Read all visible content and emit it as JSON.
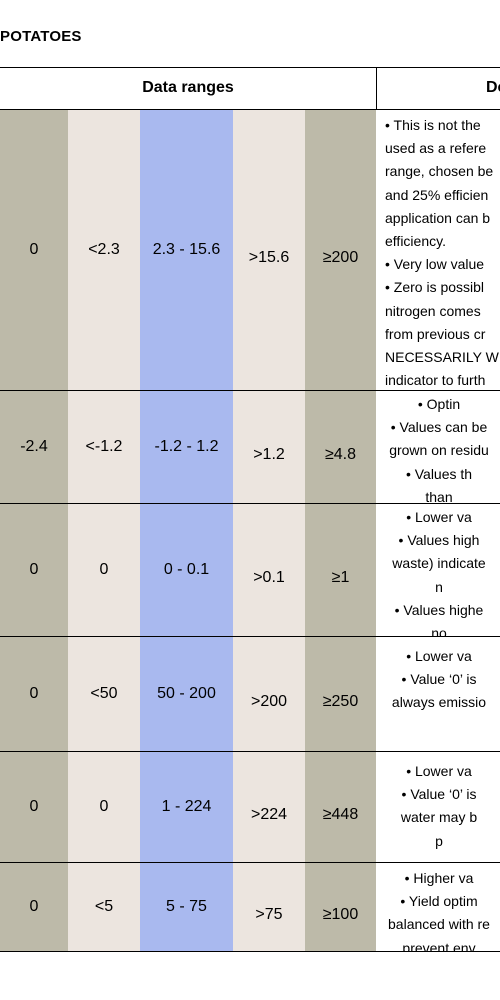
{
  "title": "POTATOES",
  "header": {
    "data_ranges": "Data ranges",
    "description": "De"
  },
  "rows": [
    {
      "values": [
        "0",
        "<2.3",
        "2.3 - 15.6",
        ">15.6",
        "≥200"
      ],
      "description_lines": [
        "• This is not the",
        "used as a refere",
        "range, chosen be",
        "and 25% efficien",
        "application can b",
        "efficiency.",
        "• Very low value",
        "• Zero is possibl",
        "nitrogen comes",
        "from previous cr",
        "NECESSARILY W",
        "indicator to furth"
      ]
    },
    {
      "values": [
        "-2.4",
        "<-1.2",
        "-1.2 - 1.2",
        ">1.2",
        "≥4.8"
      ],
      "description_lines": [
        "• Optin",
        "• Values can be",
        "grown on residu",
        "• Values th",
        "than"
      ]
    },
    {
      "values": [
        "0",
        "0",
        "0 - 0.1",
        ">0.1",
        "≥1"
      ],
      "description_lines": [
        "• Lower va",
        "• Values high",
        "waste) indicate",
        "n",
        "• Values highe",
        "no"
      ]
    },
    {
      "values": [
        "0",
        "<50",
        "50 - 200",
        ">200",
        "≥250"
      ],
      "description_lines": [
        "• Lower va",
        "• Value ‘0’ is",
        "always emissio"
      ]
    },
    {
      "values": [
        "0",
        "0",
        "1 - 224",
        ">224",
        "≥448"
      ],
      "description_lines": [
        "• Lower va",
        "• Value ‘0’ is",
        "water may b",
        "p"
      ]
    },
    {
      "values": [
        "0",
        "<5",
        "5 - 75",
        ">75",
        "≥100"
      ],
      "description_lines": [
        "• Higher va",
        "• Yield optim",
        "balanced with re",
        "prevent env"
      ]
    }
  ]
}
